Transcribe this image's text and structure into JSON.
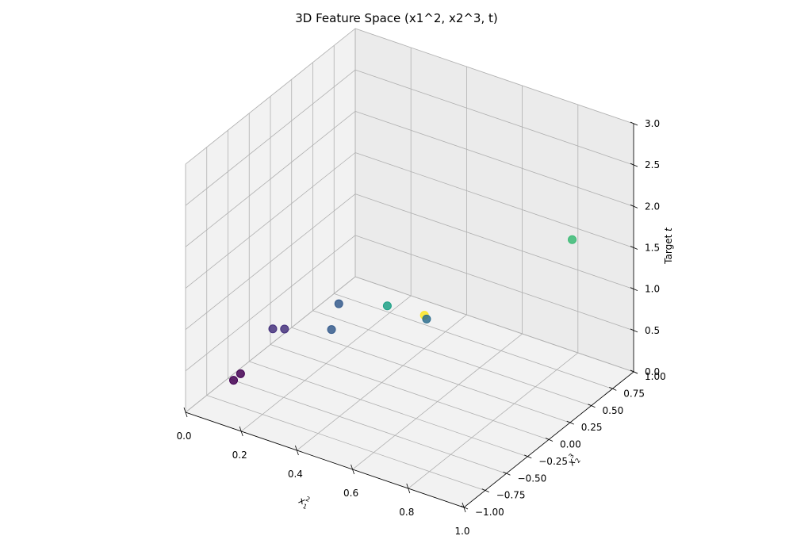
{
  "chart_data": {
    "type": "scatter",
    "projection": "3d",
    "title": "3D Feature Space (x1^2, x2^3, t)",
    "axes": {
      "x": {
        "label_base": "x",
        "label_sub": "1",
        "label_sup": "2",
        "lim": [
          0,
          1
        ],
        "ticks": [
          "0.0",
          "0.2",
          "0.4",
          "0.6",
          "0.8",
          "1.0"
        ]
      },
      "y": {
        "label_base": "x",
        "label_sub": "2",
        "label_sup": "3",
        "lim": [
          -1,
          1
        ],
        "ticks": [
          "−1.00",
          "−0.75",
          "−0.50",
          "−0.25",
          "0.00",
          "0.25",
          "0.50",
          "0.75",
          "1.00"
        ]
      },
      "z": {
        "label_text": "Target ",
        "label_italic": "t",
        "lim": [
          0,
          3
        ],
        "ticks": [
          "0.0",
          "0.5",
          "1.0",
          "1.5",
          "2.0",
          "2.5",
          "3.0"
        ]
      }
    },
    "colormap": "viridis",
    "grid": true,
    "points": [
      {
        "x": 0.02,
        "y": -0.5,
        "t": 0.0,
        "color": "#440154"
      },
      {
        "x": 0.03,
        "y": -0.45,
        "t": 0.05,
        "color": "#440154"
      },
      {
        "x": 0.1,
        "y": -0.3,
        "t": 0.55,
        "color": "#46327e"
      },
      {
        "x": 0.13,
        "y": -0.26,
        "t": 0.55,
        "color": "#46327e"
      },
      {
        "x": 0.25,
        "y": -0.1,
        "t": 0.55,
        "color": "#365c8d"
      },
      {
        "x": 0.2,
        "y": 0.15,
        "t": 0.6,
        "color": "#365c8d"
      },
      {
        "x": 0.42,
        "y": 0.0,
        "t": 0.95,
        "color": "#1fa187"
      },
      {
        "x": 0.43,
        "y": 0.43,
        "t": 0.45,
        "color": "#2e6f8e"
      },
      {
        "x": 0.41,
        "y": 0.47,
        "t": 0.44,
        "color": "#fde725"
      },
      {
        "x": 0.95,
        "y": 0.44,
        "t": 2.0,
        "color": "#3bbb75"
      }
    ]
  }
}
